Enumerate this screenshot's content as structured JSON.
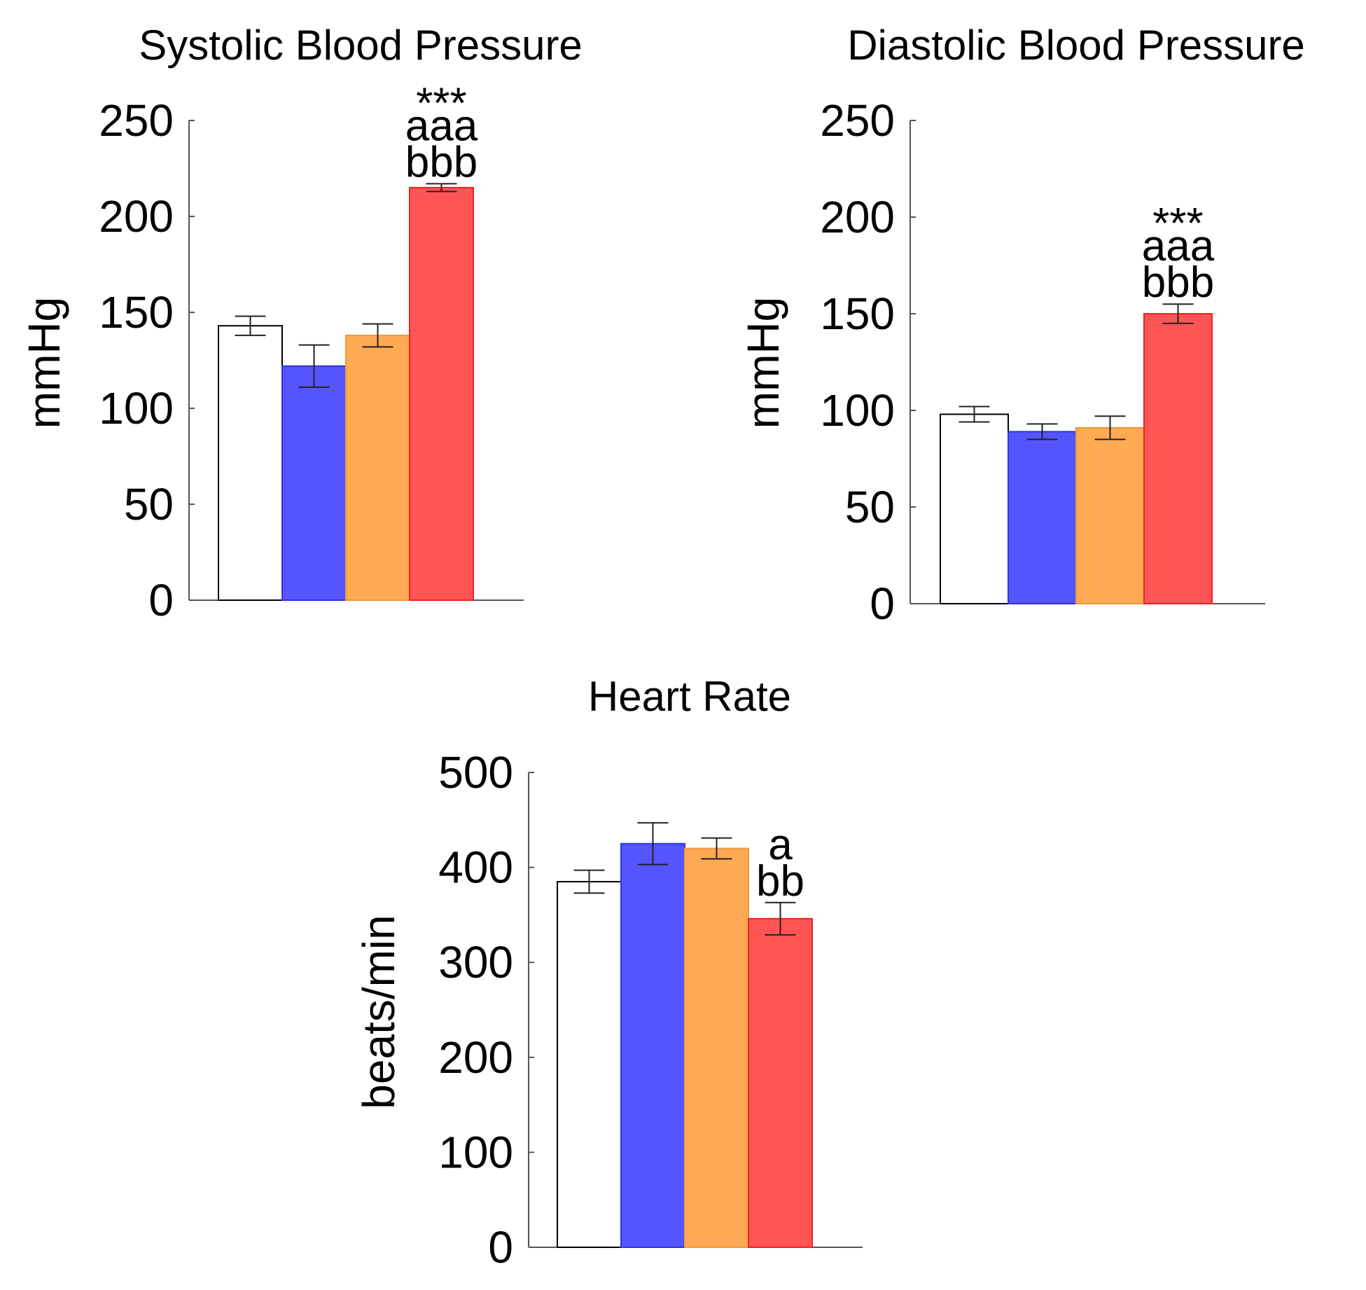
{
  "chart_data": [
    {
      "type": "bar",
      "title": "Systolic Blood Pressure",
      "ylabel": "mmHg",
      "xlabel": "",
      "ylim": [
        0,
        250
      ],
      "yticks": [
        "0",
        "50",
        "100",
        "150",
        "200",
        "250"
      ],
      "groups": [
        {
          "value": 143,
          "error": 5,
          "color": "#ffffff",
          "stroke": "#000000",
          "annotation": []
        },
        {
          "value": 122,
          "error": 11,
          "color": "#5555ff",
          "stroke": "#3333dd",
          "annotation": []
        },
        {
          "value": 138,
          "error": 6,
          "color": "#ffaa55",
          "stroke": "#ee9933",
          "annotation": []
        },
        {
          "value": 215,
          "error": 2,
          "color": "#ff5555",
          "stroke": "#ee2222",
          "annotation": [
            "***",
            "aaa",
            "bbb"
          ]
        }
      ]
    },
    {
      "type": "bar",
      "title": "Diastolic Blood Pressure",
      "ylabel": "mmHg",
      "xlabel": "",
      "ylim": [
        0,
        250
      ],
      "yticks": [
        "0",
        "50",
        "100",
        "150",
        "200",
        "250"
      ],
      "groups": [
        {
          "value": 98,
          "error": 4,
          "color": "#ffffff",
          "stroke": "#000000",
          "annotation": []
        },
        {
          "value": 89,
          "error": 4,
          "color": "#5555ff",
          "stroke": "#3333dd",
          "annotation": []
        },
        {
          "value": 91,
          "error": 6,
          "color": "#ffaa55",
          "stroke": "#ee9933",
          "annotation": []
        },
        {
          "value": 150,
          "error": 5,
          "color": "#ff5555",
          "stroke": "#ee2222",
          "annotation": [
            "***",
            "aaa",
            "bbb"
          ]
        }
      ]
    },
    {
      "type": "bar",
      "title": "Heart Rate",
      "ylabel": "beats/min",
      "xlabel": "",
      "ylim": [
        0,
        500
      ],
      "yticks": [
        "0",
        "100",
        "200",
        "300",
        "400",
        "500"
      ],
      "groups": [
        {
          "value": 385,
          "error": 12,
          "color": "#ffffff",
          "stroke": "#000000",
          "annotation": []
        },
        {
          "value": 425,
          "error": 22,
          "color": "#5555ff",
          "stroke": "#3333dd",
          "annotation": []
        },
        {
          "value": 420,
          "error": 11,
          "color": "#ffaa55",
          "stroke": "#ee9933",
          "annotation": []
        },
        {
          "value": 346,
          "error": 17,
          "color": "#ff5555",
          "stroke": "#ee2222",
          "annotation": [
            "a",
            "bb"
          ]
        }
      ]
    }
  ]
}
